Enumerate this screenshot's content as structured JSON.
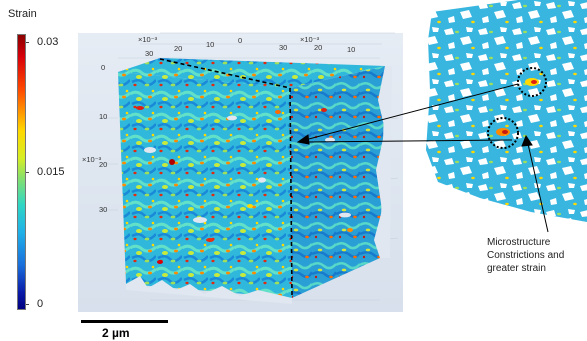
{
  "colorbar": {
    "title": "Strain",
    "max_label": "0.03",
    "mid_label": "0.015",
    "min_label": "0"
  },
  "plot": {
    "top_axis_multiplier": "×10⁻³",
    "top_axis_multiplier_right": "×10⁻³",
    "left_axis_multiplier": "×10⁻³",
    "top_ticks_left": [
      "30",
      "20",
      "10",
      "0"
    ],
    "top_ticks_right": [
      "30",
      "20",
      "10"
    ],
    "left_ticks": [
      "0",
      "10",
      "20",
      "30"
    ]
  },
  "scalebar": {
    "label": "2 µm"
  },
  "annotation": {
    "line1": "Microstructure",
    "line2": "Constrictions and",
    "line3": "greater strain"
  },
  "colors": {
    "colormap": [
      "#00007f",
      "#1a6fdc",
      "#2fd6c4",
      "#d6ee25",
      "#ff4a00",
      "#8b0000"
    ]
  }
}
